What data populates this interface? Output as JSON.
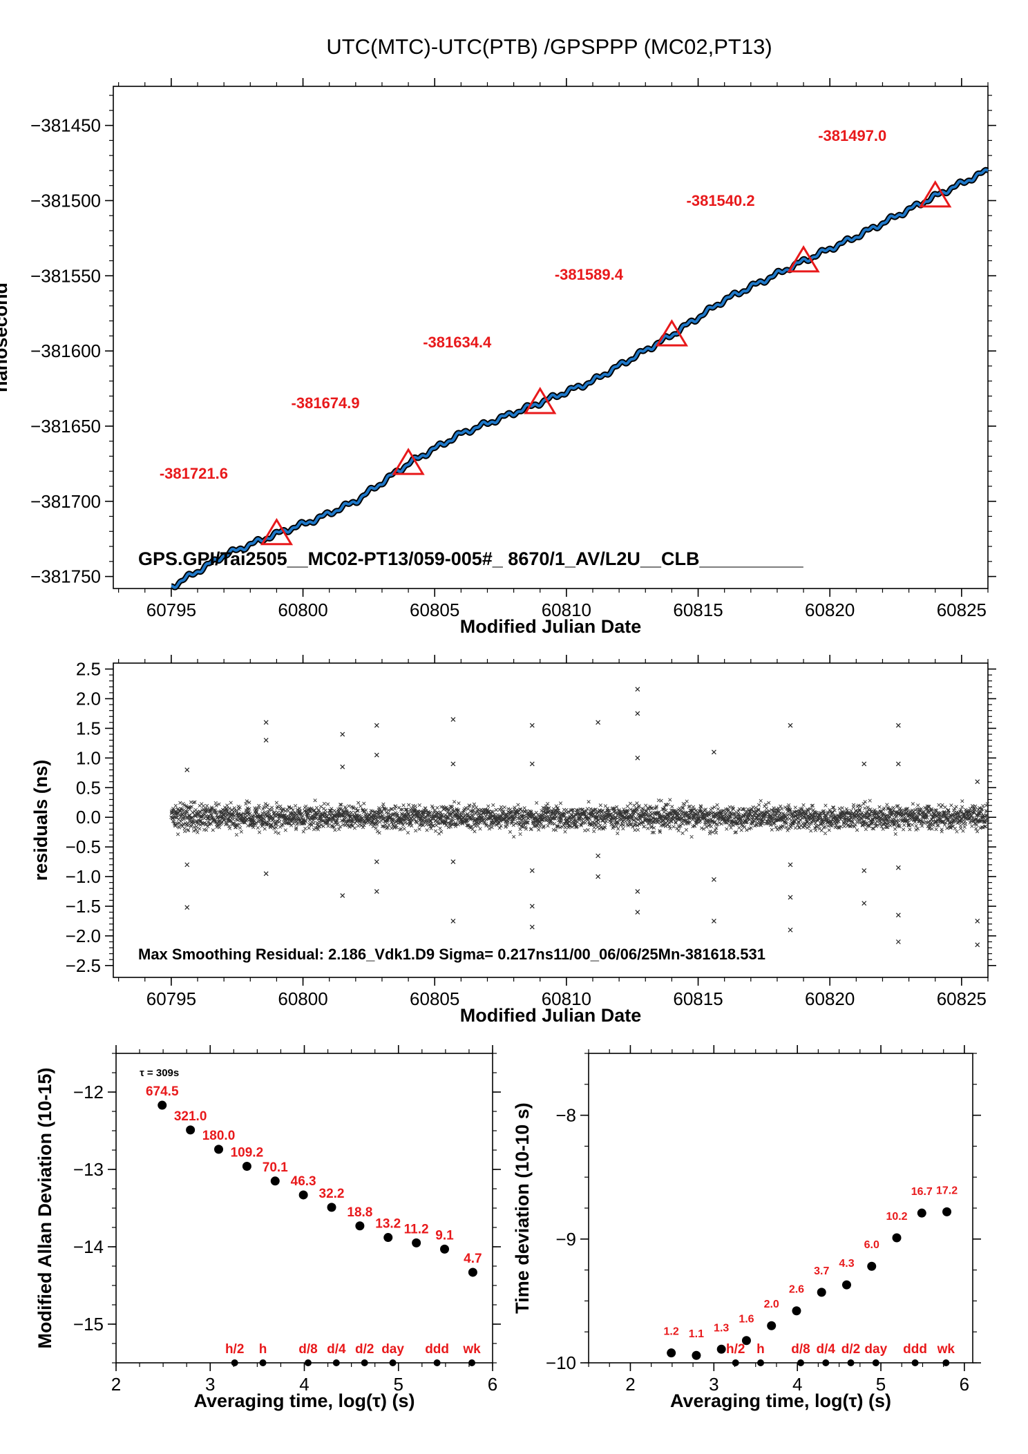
{
  "title": "UTC(MTC)-UTC(PTB)  /GPSPPP  (MC02,PT13)",
  "colors": {
    "line": "#1f78c8",
    "marker": "#e8191b",
    "ink": "#000000"
  },
  "chart_data": [
    {
      "type": "line",
      "title": "UTC(MTC)-UTC(PTB)  /GPSPPP  (MC02,PT13)",
      "ylabel": "nanosecond",
      "xlabel": "Modified Julian Date",
      "xlim": [
        60792.8,
        60826
      ],
      "ylim": [
        -381758,
        -381424
      ],
      "xticks": [
        60795,
        60800,
        60805,
        60810,
        60815,
        60820,
        60825
      ],
      "yticks": [
        -381450,
        -381500,
        -381550,
        -381600,
        -381650,
        -381700,
        -381750
      ],
      "series": [
        {
          "x": [
            60795,
            60797,
            60799,
            60800.5,
            60802,
            60804,
            60806,
            60809,
            60811,
            60814,
            60816,
            60819,
            60821,
            60824,
            60826
          ],
          "values": [
            -381757,
            -381736,
            -381721.6,
            -381712,
            -381700,
            -381674.9,
            -381655,
            -381634.4,
            -381620,
            -381589.4,
            -381566,
            -381540.2,
            -381524,
            -381497,
            -381480
          ]
        }
      ],
      "markers": [
        {
          "x": 60799,
          "y": -381721.6,
          "label": "-381721.6"
        },
        {
          "x": 60804,
          "y": -381674.9,
          "label": "-381674.9"
        },
        {
          "x": 60809,
          "y": -381634.4,
          "label": "-381634.4"
        },
        {
          "x": 60814,
          "y": -381589.4,
          "label": "-381589.4"
        },
        {
          "x": 60819,
          "y": -381540.2,
          "label": "-381540.2"
        },
        {
          "x": 60824,
          "y": -381497.0,
          "label": "-381497.0"
        }
      ],
      "annotation": "GPS.GPI/Tai2505__MC02-PT13/059-005#_  8670/1_AV/L2U__CLB__________"
    },
    {
      "type": "scatter",
      "ylabel": "residuals (ns)",
      "xlabel": "Modified Julian Date",
      "xlim": [
        60792.8,
        60826
      ],
      "ylim": [
        -2.7,
        2.6
      ],
      "xticks": [
        60795,
        60800,
        60805,
        60810,
        60815,
        60820,
        60825
      ],
      "yticks": [
        2.5,
        2.0,
        1.5,
        1.0,
        0.5,
        0.0,
        -0.5,
        -1.0,
        -1.5,
        -2.0,
        -2.5
      ],
      "x_range": [
        60795,
        60826
      ],
      "sigma": 0.217,
      "outliers": [
        {
          "x": 60795.6,
          "values": [
            0.8,
            -0.8,
            -1.52
          ]
        },
        {
          "x": 60798.6,
          "values": [
            1.6,
            1.3,
            -0.95
          ]
        },
        {
          "x": 60801.5,
          "values": [
            1.4,
            0.85,
            -1.32
          ]
        },
        {
          "x": 60802.8,
          "values": [
            1.55,
            1.05,
            -0.75,
            -1.25
          ]
        },
        {
          "x": 60805.7,
          "values": [
            1.65,
            0.9,
            -0.75,
            -1.75
          ]
        },
        {
          "x": 60808.7,
          "values": [
            1.55,
            0.9,
            -0.9,
            -1.5,
            -1.85
          ]
        },
        {
          "x": 60811.2,
          "values": [
            1.6,
            -0.65,
            -1.0
          ]
        },
        {
          "x": 60812.7,
          "values": [
            2.16,
            1.75,
            1.0,
            -1.25,
            -1.6
          ]
        },
        {
          "x": 60815.6,
          "values": [
            1.1,
            -1.05,
            -1.75
          ]
        },
        {
          "x": 60818.5,
          "values": [
            1.55,
            -0.8,
            -1.35,
            -1.9
          ]
        },
        {
          "x": 60821.3,
          "values": [
            0.9,
            -0.9,
            -1.45
          ]
        },
        {
          "x": 60822.6,
          "values": [
            1.55,
            0.9,
            -0.85,
            -1.65,
            -2.1
          ]
        },
        {
          "x": 60825.6,
          "values": [
            0.6,
            -1.75,
            -2.15
          ]
        }
      ],
      "annotation": "Max Smoothing Residual: 2.186_Vdk1.D9  Sigma= 0.217ns11/00_06/06/25Mn-381618.531"
    },
    {
      "type": "scatter",
      "ylabel": "Modified Allan Deviation (10-15)",
      "xlabel": "Averaging time, log(τ) (s)",
      "xlim": [
        2,
        6
      ],
      "ylim": [
        -15.5,
        -11.5
      ],
      "xticks": [
        2,
        3,
        4,
        5,
        6
      ],
      "yticks": [
        -12,
        -13,
        -14,
        -15
      ],
      "note": "τ = 309s",
      "x": [
        2.49,
        2.79,
        3.09,
        3.39,
        3.69,
        3.99,
        4.29,
        4.59,
        4.89,
        5.19,
        5.49,
        5.79
      ],
      "values": [
        -12.17,
        -12.49,
        -12.74,
        -12.96,
        -13.15,
        -13.33,
        -13.49,
        -13.73,
        -13.88,
        -13.95,
        -14.03,
        -14.33
      ],
      "labels": [
        "674.5",
        "321.0",
        "180.0",
        "109.2",
        "70.1",
        "46.3",
        "32.2",
        "18.8",
        "13.2",
        "11.2",
        "9.1",
        "4.7"
      ],
      "time_marks": [
        {
          "x": 3.26,
          "label": "h/2"
        },
        {
          "x": 3.56,
          "label": "h"
        },
        {
          "x": 4.04,
          "label": "d/8"
        },
        {
          "x": 4.34,
          "label": "d/4"
        },
        {
          "x": 4.64,
          "label": "d/2"
        },
        {
          "x": 4.94,
          "label": "day"
        },
        {
          "x": 5.41,
          "label": "ddd"
        },
        {
          "x": 5.78,
          "label": "wk"
        }
      ]
    },
    {
      "type": "scatter",
      "ylabel": "Time deviation (10-10 s)",
      "xlabel": "Averaging time, log(τ) (s)",
      "xlim": [
        1.5,
        6.1
      ],
      "ylim": [
        -10,
        -7.5
      ],
      "xticks": [
        2,
        3,
        4,
        5,
        6
      ],
      "yticks": [
        -8,
        -9,
        -10
      ],
      "x": [
        2.49,
        2.79,
        3.09,
        3.39,
        3.69,
        3.99,
        4.29,
        4.59,
        4.89,
        5.19,
        5.49,
        5.79
      ],
      "values": [
        -9.92,
        -9.94,
        -9.89,
        -9.82,
        -9.7,
        -9.58,
        -9.43,
        -9.37,
        -9.22,
        -8.99,
        -8.79,
        -8.78
      ],
      "labels": [
        "1.2",
        "1.1",
        "1.3",
        "1.6",
        "2.0",
        "2.6",
        "3.7",
        "4.3",
        "6.0",
        "10.2",
        "16.7",
        "17.2"
      ],
      "time_marks": [
        {
          "x": 3.26,
          "label": "h/2"
        },
        {
          "x": 3.56,
          "label": "h"
        },
        {
          "x": 4.04,
          "label": "d/8"
        },
        {
          "x": 4.34,
          "label": "d/4"
        },
        {
          "x": 4.64,
          "label": "d/2"
        },
        {
          "x": 4.94,
          "label": "day"
        },
        {
          "x": 5.41,
          "label": "ddd"
        },
        {
          "x": 5.78,
          "label": "wk"
        }
      ]
    }
  ]
}
